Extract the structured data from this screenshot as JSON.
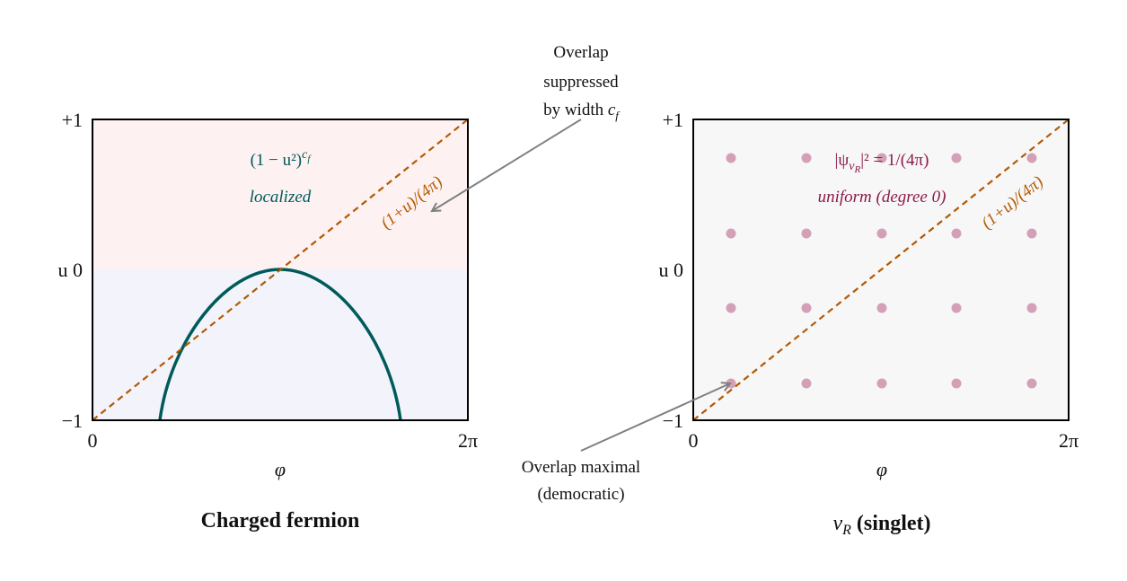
{
  "left_panel": {
    "y_ticks": [
      "+1",
      "u 0",
      "−1"
    ],
    "x_ticks": [
      "0",
      "2π"
    ],
    "x_label": "φ",
    "title": "Charged fermion",
    "formula": {
      "base": "(1 − u²)",
      "exp": "c",
      "exp_sub": "f"
    },
    "formula_note": "localized",
    "diagonal_label": "(1+u)/(4π)"
  },
  "right_panel": {
    "y_ticks": [
      "+1",
      "u 0",
      "−1"
    ],
    "x_ticks": [
      "0",
      "2π"
    ],
    "x_label": "φ",
    "title": {
      "symbol": "ν",
      "sub": "R",
      "rest": " (singlet)"
    },
    "formula": {
      "open": "|ψ",
      "sub": "ν",
      "sub_sub": "R",
      "close": "|² = 1/(4π)"
    },
    "formula_note": "uniform (degree 0)",
    "diagonal_label": "(1+u)/(4π)"
  },
  "annotations": {
    "top": {
      "lines": [
        "Overlap",
        "suppressed"
      ],
      "last": {
        "text": "by width ",
        "var": "c",
        "sub": "f"
      }
    },
    "bottom": {
      "lines": [
        "Overlap maximal",
        "(democratic)"
      ]
    }
  }
}
